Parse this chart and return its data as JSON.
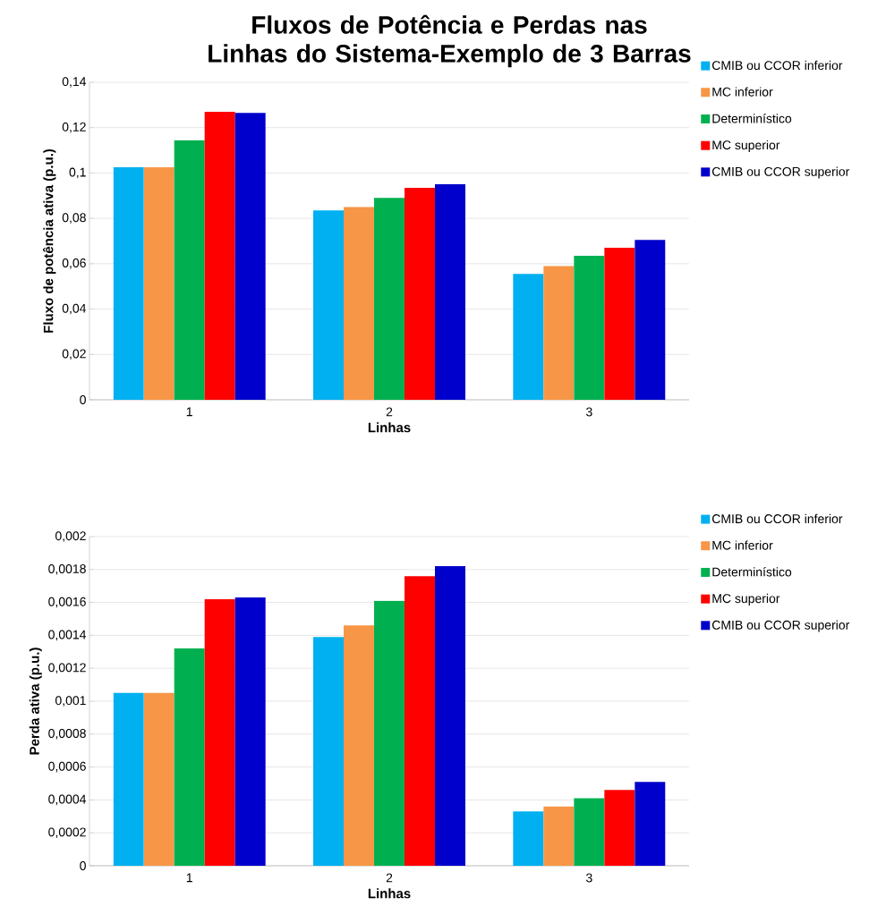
{
  "chart_data": [
    {
      "type": "bar",
      "title": "Fluxos de Potência e Perdas nas Linhas do Sistema-Exemplo de 3 Barras",
      "xlabel": "Linhas",
      "ylabel": "Fluxo de potência ativa (p.u.)",
      "categories": [
        "1",
        "2",
        "3"
      ],
      "series": [
        {
          "name": "CMIB ou CCOR inferior",
          "color": "#00b0f0",
          "values": [
            0.1025,
            0.0835,
            0.0555
          ]
        },
        {
          "name": "MC inferior",
          "color": "#f79646",
          "values": [
            0.1025,
            0.085,
            0.059
          ]
        },
        {
          "name": "Determinístico",
          "color": "#00b050",
          "values": [
            0.1145,
            0.089,
            0.0635
          ]
        },
        {
          "name": "MC superior",
          "color": "#ff0000",
          "values": [
            0.127,
            0.0935,
            0.067
          ]
        },
        {
          "name": "CMIB ou CCOR superior",
          "color": "#0000cc",
          "values": [
            0.1265,
            0.095,
            0.0705
          ]
        }
      ],
      "ylim": [
        0,
        0.14
      ],
      "yticks": [
        0,
        {
          "value": 0.02,
          "label": "0,02"
        },
        {
          "value": 0.04,
          "label": "0,04"
        },
        {
          "value": 0.06,
          "label": "0,06"
        },
        {
          "value": 0.08,
          "label": "0,08"
        },
        {
          "value": 0.1,
          "label": "0,1"
        },
        {
          "value": 0.12,
          "label": "0,12"
        },
        {
          "value": 0.14,
          "label": "0,14"
        }
      ],
      "grid": "y",
      "legend": "top right"
    },
    {
      "type": "bar",
      "xlabel": "Linhas",
      "ylabel": "Perda ativa (p.u.)",
      "categories": [
        "1",
        "2",
        "3"
      ],
      "series": [
        {
          "name": "CMIB ou CCOR inferior",
          "color": "#00b0f0",
          "values": [
            0.00105,
            0.00139,
            0.00033
          ]
        },
        {
          "name": "MC inferior",
          "color": "#f79646",
          "values": [
            0.00105,
            0.00146,
            0.00036
          ]
        },
        {
          "name": "Determinístico",
          "color": "#00b050",
          "values": [
            0.00132,
            0.00161,
            0.00041
          ]
        },
        {
          "name": "MC superior",
          "color": "#ff0000",
          "values": [
            0.00162,
            0.00176,
            0.00046
          ]
        },
        {
          "name": "CMIB ou CCOR superior",
          "color": "#0000cc",
          "values": [
            0.00163,
            0.00182,
            0.00051
          ]
        }
      ],
      "ylim": [
        0,
        0.002
      ],
      "yticks": [
        0,
        {
          "value": 0.0002,
          "label": "0,0002"
        },
        {
          "value": 0.0004,
          "label": "0,0004"
        },
        {
          "value": 0.0006,
          "label": "0,0006"
        },
        {
          "value": 0.0008,
          "label": "0,0008"
        },
        {
          "value": 0.001,
          "label": "0,001"
        },
        {
          "value": 0.0012,
          "label": "0,0012"
        },
        {
          "value": 0.0014,
          "label": "0,0014"
        },
        {
          "value": 0.0016,
          "label": "0,0016"
        },
        {
          "value": 0.0018,
          "label": "0,0018"
        },
        {
          "value": 0.002,
          "label": "0,002"
        }
      ],
      "grid": "y",
      "legend": "top right"
    }
  ]
}
